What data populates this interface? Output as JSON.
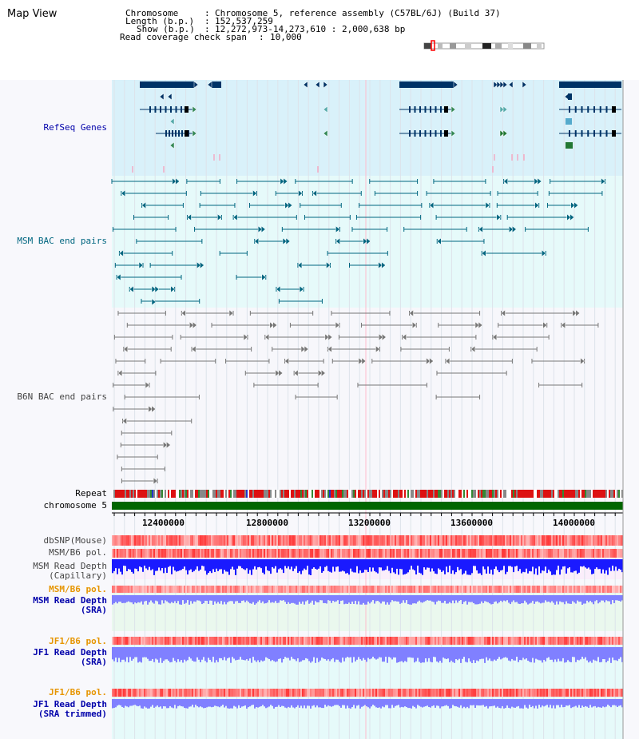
{
  "header": {
    "title": "Map View",
    "rows": [
      {
        "label": "Chromosome",
        "sep": ":",
        "value": "Chromosome 5, reference assembly (C57BL/6J) (Build 37)"
      },
      {
        "label": "Length (b.p.)",
        "sep": ":",
        "value": "152,537,259"
      },
      {
        "label": "Show (b.p.)",
        "sep": ":",
        "value": "12,272,973-14,273,610 : 2,000,638 bp"
      },
      {
        "label": "Read coverage check span",
        "sep": ":",
        "value": "10,000"
      }
    ]
  },
  "tracks": {
    "refseq": "RefSeq Genes",
    "msm_bac": "MSM BAC end pairs",
    "b6n_bac": "B6N BAC end pairs",
    "repeat": "Repeat",
    "chromosome": "chromosome 5",
    "dbsnp": "dbSNP(Mouse)",
    "msm_b6_pol_1": "MSM/B6 pol.",
    "msm_depth_cap_1": "MSM Read Depth",
    "msm_depth_cap_2": "(Capillary)",
    "msm_b6_pol_2": "MSM/B6 pol.",
    "msm_depth_sra_1": "MSM Read Depth",
    "msm_depth_sra_2": "(SRA)",
    "jf1_b6_pol_1": "JF1/B6 pol.",
    "jf1_depth_sra_1": "JF1 Read Depth",
    "jf1_depth_sra_2": "(SRA)",
    "jf1_b6_pol_2": "JF1/B6 pol.",
    "jf1_depth_trim_1": "JF1 Read Depth",
    "jf1_depth_trim_2": "(SRA trimmed)"
  },
  "axis": {
    "ticks": [
      "12400000",
      "12800000",
      "13200000",
      "13600000",
      "14000000"
    ]
  },
  "colors": {
    "refseq_bg": "#d9f1fa",
    "msm_bg": "#e6fafa",
    "b6n_bg": "#f7f7fb",
    "gene": "#003366",
    "msm_pair": "#006680",
    "b6n_pair": "#777777",
    "chromosome_bar": "#006600",
    "depth_blue": "#1a1aff",
    "depth_sra_blue": "#8080ff",
    "polymorphism_red": "#ff3333",
    "label_blue": "#0000aa",
    "label_teal": "#006680",
    "label_grey": "#444444",
    "label_orange": "#e69500"
  }
}
